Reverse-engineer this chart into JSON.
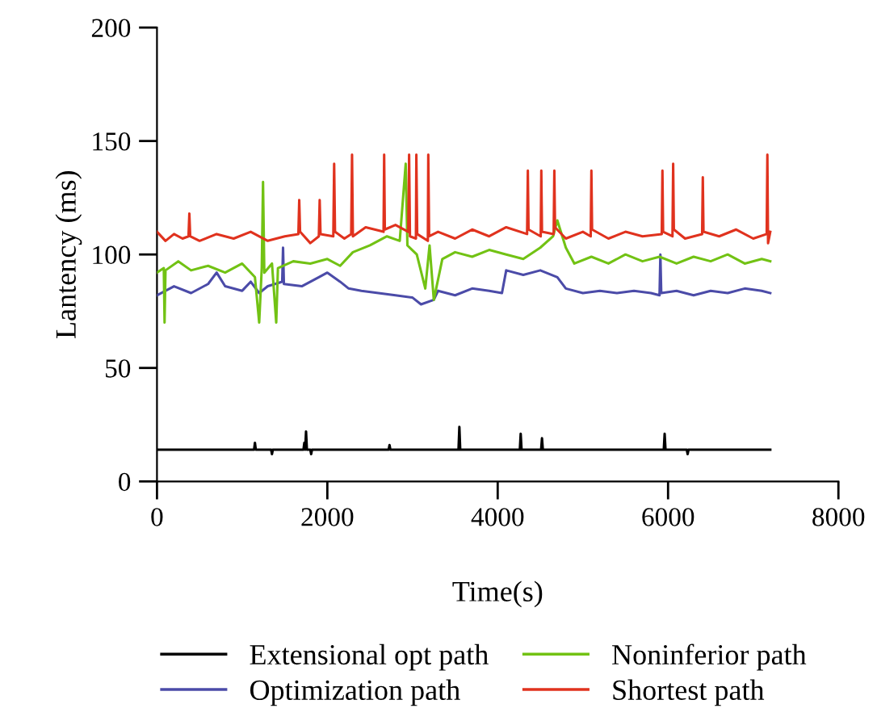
{
  "chart_data": {
    "type": "line",
    "xlabel": "Time(s)",
    "ylabel": "Lantency (ms)",
    "xlim": [
      0,
      8000
    ],
    "xticks": [
      0,
      2000,
      4000,
      6000,
      8000
    ],
    "ylim": [
      0,
      200
    ],
    "yticks": [
      0,
      50,
      100,
      150,
      200
    ],
    "grid": false,
    "legend": "bottom",
    "marker": "none",
    "line_style": "solid",
    "series": [
      {
        "name": "Extensional opt path",
        "color": "#000000",
        "x": [
          0,
          1140,
          1150,
          1160,
          1340,
          1350,
          1360,
          1720,
          1730,
          1740,
          1750,
          1760,
          1800,
          1810,
          1820,
          2720,
          2730,
          2740,
          3540,
          3550,
          3560,
          4260,
          4270,
          4280,
          4510,
          4520,
          4530,
          5950,
          5960,
          5970,
          6220,
          6230,
          6240,
          7200
        ],
        "values": [
          14,
          14,
          17,
          14,
          14,
          12,
          14,
          14,
          17,
          14,
          22,
          14,
          14,
          12,
          14,
          14,
          16,
          14,
          14,
          24,
          14,
          14,
          21,
          14,
          14,
          19,
          14,
          14,
          21,
          14,
          14,
          12,
          14,
          14
        ]
      },
      {
        "name": "Optimization path",
        "color": "#4b4ba8",
        "x": [
          0,
          200,
          400,
          600,
          700,
          800,
          1000,
          1100,
          1200,
          1300,
          1470,
          1480,
          1490,
          1700,
          1900,
          2000,
          2150,
          2250,
          2400,
          2600,
          2800,
          3000,
          3100,
          3250,
          3300,
          3500,
          3700,
          3900,
          4050,
          4100,
          4300,
          4500,
          4700,
          4800,
          5000,
          5200,
          5400,
          5600,
          5800,
          5900,
          5910,
          5920,
          6100,
          6300,
          6500,
          6700,
          6900,
          7100,
          7200
        ],
        "values": [
          82,
          86,
          83,
          87,
          92,
          86,
          84,
          88,
          83,
          86,
          88,
          103,
          87,
          86,
          90,
          92,
          88,
          85,
          84,
          83,
          82,
          81,
          78,
          80,
          84,
          82,
          85,
          84,
          83,
          93,
          91,
          93,
          90,
          85,
          83,
          84,
          83,
          84,
          83,
          82,
          100,
          83,
          84,
          82,
          84,
          83,
          85,
          84,
          83
        ]
      },
      {
        "name": "Noninferior path",
        "color": "#72c214",
        "x": [
          0,
          80,
          89,
          100,
          250,
          400,
          600,
          800,
          1000,
          1150,
          1200,
          1230,
          1245,
          1260,
          1350,
          1400,
          1420,
          1600,
          1800,
          2000,
          2150,
          2300,
          2500,
          2700,
          2850,
          2920,
          2940,
          3050,
          3150,
          3200,
          3250,
          3350,
          3500,
          3700,
          3900,
          4100,
          4300,
          4500,
          4650,
          4700,
          4800,
          4900,
          5100,
          5300,
          5500,
          5700,
          5900,
          6100,
          6300,
          6500,
          6700,
          6900,
          7100,
          7200
        ],
        "values": [
          92,
          94,
          70,
          93,
          97,
          93,
          95,
          92,
          96,
          90,
          70,
          94,
          132,
          92,
          96,
          70,
          94,
          97,
          96,
          98,
          95,
          101,
          104,
          108,
          106,
          140,
          104,
          100,
          85,
          104,
          80,
          98,
          101,
          99,
          102,
          100,
          98,
          103,
          108,
          115,
          103,
          96,
          99,
          96,
          100,
          97,
          99,
          96,
          99,
          97,
          100,
          96,
          98,
          97
        ]
      },
      {
        "name": "Shortest path",
        "color": "#e0321e",
        "x": [
          0,
          100,
          200,
          300,
          370,
          380,
          390,
          500,
          700,
          900,
          1100,
          1300,
          1500,
          1660,
          1670,
          1680,
          1800,
          1900,
          1910,
          1920,
          2070,
          2080,
          2090,
          2200,
          2280,
          2290,
          2300,
          2450,
          2660,
          2667,
          2675,
          2800,
          2950,
          2960,
          2970,
          3040,
          3045,
          3055,
          3180,
          3185,
          3195,
          3300,
          3500,
          3700,
          3900,
          4100,
          4345,
          4354,
          4362,
          4505,
          4512,
          4520,
          4657,
          4665,
          4673,
          4800,
          5000,
          5092,
          5100,
          5108,
          5300,
          5500,
          5700,
          5926,
          5934,
          5942,
          6052,
          6060,
          6068,
          6200,
          6400,
          6408,
          6416,
          6600,
          6800,
          7000,
          7158,
          7166,
          7174,
          7200
        ],
        "values": [
          110,
          106,
          109,
          107,
          108,
          118,
          108,
          106,
          109,
          107,
          110,
          106,
          108,
          109,
          124,
          110,
          105,
          108,
          124,
          109,
          108,
          140,
          110,
          107,
          109,
          144,
          108,
          112,
          110,
          144,
          111,
          113,
          110,
          144,
          108,
          107,
          144,
          109,
          106,
          144,
          108,
          110,
          107,
          111,
          108,
          112,
          109,
          137,
          111,
          108,
          137,
          110,
          109,
          137,
          112,
          107,
          110,
          108,
          137,
          111,
          107,
          110,
          108,
          109,
          137,
          110,
          108,
          140,
          111,
          107,
          109,
          134,
          110,
          108,
          111,
          107,
          109,
          144,
          105,
          110
        ]
      }
    ]
  }
}
